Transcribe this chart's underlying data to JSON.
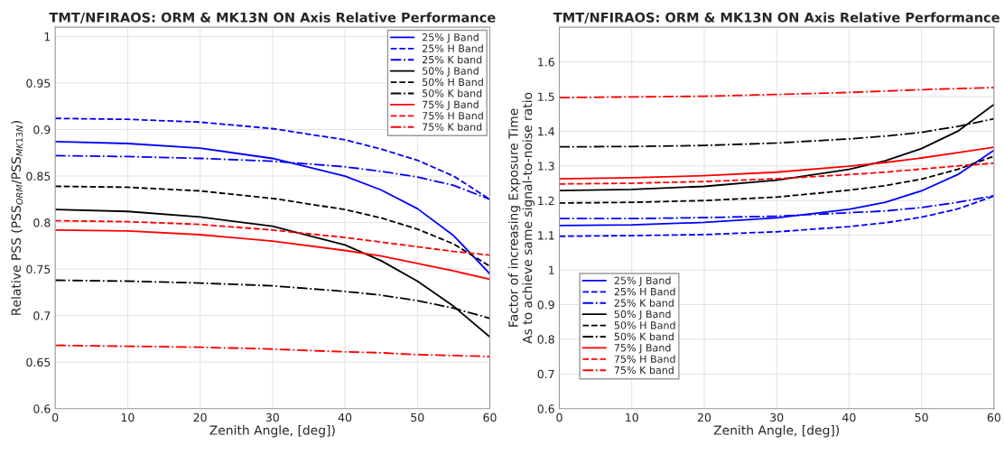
{
  "chart_data": [
    {
      "type": "line",
      "title": "TMT/NFIRAOS: ORM & MK13N ON Axis Relative Performance",
      "xlabel": "Zenith Angle, [deg])",
      "ylabel": "Relative PSS (PSS$_{ORM}$/PSS$_{MK13N}$)",
      "x": [
        0,
        10,
        20,
        30,
        40,
        45,
        50,
        55,
        60
      ],
      "xlim": [
        0,
        60
      ],
      "xticks": [
        0,
        10,
        20,
        30,
        40,
        50,
        60
      ],
      "ylim": [
        0.6,
        1.01
      ],
      "yticks": [
        0.6,
        0.65,
        0.7,
        0.75,
        0.8,
        0.85,
        0.9,
        0.95,
        1
      ],
      "grid": true,
      "legend": "top right",
      "series": [
        {
          "name": "25% J Band",
          "color": "#0000ff",
          "line_style": "solid",
          "values": [
            0.887,
            0.885,
            0.88,
            0.869,
            0.85,
            0.835,
            0.815,
            0.786,
            0.745
          ]
        },
        {
          "name": "25% H Band",
          "color": "#0000ff",
          "line_style": "dashed",
          "values": [
            0.912,
            0.911,
            0.908,
            0.901,
            0.889,
            0.879,
            0.867,
            0.85,
            0.825
          ]
        },
        {
          "name": "25% K band",
          "color": "#0000ff",
          "line_style": "dashdot",
          "values": [
            0.872,
            0.871,
            0.869,
            0.866,
            0.86,
            0.855,
            0.849,
            0.84,
            0.825
          ]
        },
        {
          "name": "50% J Band",
          "color": "#000000",
          "line_style": "solid",
          "values": [
            0.814,
            0.812,
            0.806,
            0.796,
            0.776,
            0.759,
            0.737,
            0.71,
            0.677
          ]
        },
        {
          "name": "50% H Band",
          "color": "#000000",
          "line_style": "dashed",
          "values": [
            0.839,
            0.838,
            0.834,
            0.826,
            0.814,
            0.805,
            0.793,
            0.777,
            0.753
          ]
        },
        {
          "name": "50% K band",
          "color": "#000000",
          "line_style": "dashdot",
          "values": [
            0.738,
            0.737,
            0.735,
            0.732,
            0.726,
            0.722,
            0.716,
            0.708,
            0.697
          ]
        },
        {
          "name": "75% J Band",
          "color": "#ff0000",
          "line_style": "solid",
          "values": [
            0.792,
            0.791,
            0.787,
            0.78,
            0.77,
            0.764,
            0.756,
            0.748,
            0.739
          ]
        },
        {
          "name": "75% H Band",
          "color": "#ff0000",
          "line_style": "dashed",
          "values": [
            0.802,
            0.801,
            0.798,
            0.792,
            0.784,
            0.779,
            0.774,
            0.769,
            0.765
          ]
        },
        {
          "name": "75% K band",
          "color": "#ff0000",
          "line_style": "dashdot",
          "values": [
            0.668,
            0.667,
            0.666,
            0.664,
            0.661,
            0.66,
            0.658,
            0.657,
            0.656
          ]
        }
      ]
    },
    {
      "type": "line",
      "title": "TMT/NFIRAOS: ORM & MK13N ON Axis Relative Performance",
      "xlabel": "Zenith Angle, [deg])",
      "ylabel": "Factor of increasing Exposure Time\nAs to achieve same signal-to-noise ratio",
      "x": [
        0,
        10,
        20,
        30,
        40,
        45,
        50,
        55,
        60
      ],
      "xlim": [
        0,
        60
      ],
      "xticks": [
        0,
        10,
        20,
        30,
        40,
        50,
        60
      ],
      "ylim": [
        0.6,
        1.7
      ],
      "yticks": [
        0.6,
        0.7,
        0.8,
        0.9,
        1,
        1.1,
        1.2,
        1.3,
        1.4,
        1.5,
        1.6
      ],
      "grid": true,
      "legend": "bottom left",
      "series": [
        {
          "name": "25% J Band",
          "color": "#0000ff",
          "line_style": "solid",
          "values": [
            1.128,
            1.13,
            1.137,
            1.15,
            1.175,
            1.195,
            1.228,
            1.275,
            1.345
          ]
        },
        {
          "name": "25% H Band",
          "color": "#0000ff",
          "line_style": "dashed",
          "values": [
            1.097,
            1.099,
            1.102,
            1.11,
            1.125,
            1.136,
            1.152,
            1.176,
            1.213
          ]
        },
        {
          "name": "25% K band",
          "color": "#0000ff",
          "line_style": "dashdot",
          "values": [
            1.148,
            1.148,
            1.151,
            1.155,
            1.165,
            1.17,
            1.18,
            1.195,
            1.214
          ]
        },
        {
          "name": "50% J Band",
          "color": "#000000",
          "line_style": "solid",
          "values": [
            1.229,
            1.232,
            1.241,
            1.259,
            1.29,
            1.315,
            1.35,
            1.4,
            1.477
          ]
        },
        {
          "name": "50% H Band",
          "color": "#000000",
          "line_style": "dashed",
          "values": [
            1.193,
            1.195,
            1.2,
            1.21,
            1.23,
            1.243,
            1.262,
            1.29,
            1.328
          ]
        },
        {
          "name": "50% K band",
          "color": "#000000",
          "line_style": "dashdot",
          "values": [
            1.355,
            1.356,
            1.359,
            1.366,
            1.378,
            1.386,
            1.397,
            1.414,
            1.436
          ]
        },
        {
          "name": "75% J Band",
          "color": "#ff0000",
          "line_style": "solid",
          "values": [
            1.263,
            1.266,
            1.272,
            1.282,
            1.299,
            1.31,
            1.323,
            1.338,
            1.354
          ]
        },
        {
          "name": "75% H Band",
          "color": "#ff0000",
          "line_style": "dashed",
          "values": [
            1.248,
            1.25,
            1.255,
            1.263,
            1.275,
            1.282,
            1.291,
            1.3,
            1.308
          ]
        },
        {
          "name": "75% K band",
          "color": "#ff0000",
          "line_style": "dashdot",
          "values": [
            1.497,
            1.499,
            1.501,
            1.506,
            1.512,
            1.516,
            1.52,
            1.523,
            1.526
          ]
        }
      ]
    }
  ]
}
